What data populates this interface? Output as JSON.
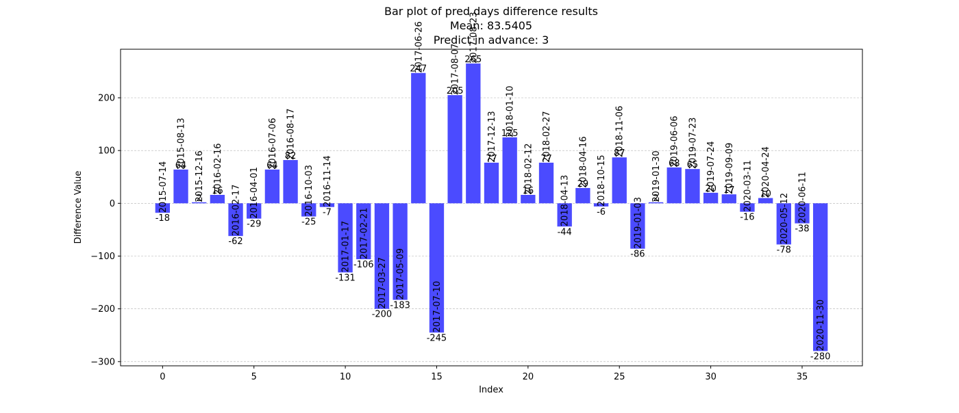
{
  "chart_data": {
    "type": "bar",
    "title": [
      "Bar plot of pred days difference results",
      "Mean: 83.5405",
      "Predict in advance: 3"
    ],
    "xlabel": "Index",
    "ylabel": "Difference Value",
    "xlim": [
      -2.3,
      38.3
    ],
    "ylim": [
      -308,
      292
    ],
    "xticks": [
      0,
      5,
      10,
      15,
      20,
      25,
      30,
      35
    ],
    "yticks": [
      -300,
      -200,
      -100,
      0,
      100,
      200
    ],
    "grid": "horizontal-dashed",
    "bar_color": "#4b4bff",
    "x": [
      0,
      1,
      2,
      3,
      4,
      5,
      6,
      7,
      8,
      9,
      10,
      11,
      12,
      13,
      14,
      15,
      16,
      17,
      18,
      19,
      20,
      21,
      22,
      23,
      24,
      25,
      26,
      27,
      28,
      29,
      30,
      31,
      32,
      33,
      34,
      35,
      36
    ],
    "values": [
      -18,
      64,
      2,
      16,
      -62,
      -29,
      64,
      82,
      -25,
      -7,
      -131,
      -106,
      -200,
      -183,
      247,
      -245,
      205,
      265,
      77,
      125,
      16,
      77,
      -44,
      29,
      -6,
      87,
      -86,
      2,
      68,
      65,
      20,
      17,
      -16,
      10,
      -78,
      -38,
      -280
    ],
    "value_labels": [
      "-18",
      "64",
      "2",
      "16",
      "-62",
      "-29",
      "64",
      "82",
      "-25",
      "-7",
      "-131",
      "-106",
      "-200",
      "-183",
      "247",
      "-245",
      "205",
      "265",
      "77",
      "125",
      "16",
      "77",
      "-44",
      "29",
      "-6",
      "87",
      "-86",
      "2",
      "68",
      "65",
      "20",
      "17",
      "-16",
      "10",
      "-78",
      "-38",
      "-280"
    ],
    "date_labels": [
      "2015-07-14",
      "2015-08-13",
      "2015-12-16",
      "2016-02-16",
      "2016-02-17",
      "2016-04-01",
      "2016-07-06",
      "2016-08-17",
      "2016-10-03",
      "2016-11-14",
      "2017-01-17",
      "2017-02-21",
      "2017-03-27",
      "2017-05-09",
      "2017-06-26",
      "2017-07-10",
      "2017-08-07",
      "2017-08-23",
      "2017-12-13",
      "2018-01-10",
      "2018-02-12",
      "2018-02-27",
      "2018-04-13",
      "2018-04-16",
      "2018-10-15",
      "2018-11-06",
      "2019-01-03",
      "2019-01-30",
      "2019-06-06",
      "2019-07-23",
      "2019-07-24",
      "2019-09-09",
      "2020-03-11",
      "2020-04-24",
      "2020-05-12",
      "2020-06-11",
      "2020-11-30"
    ]
  }
}
